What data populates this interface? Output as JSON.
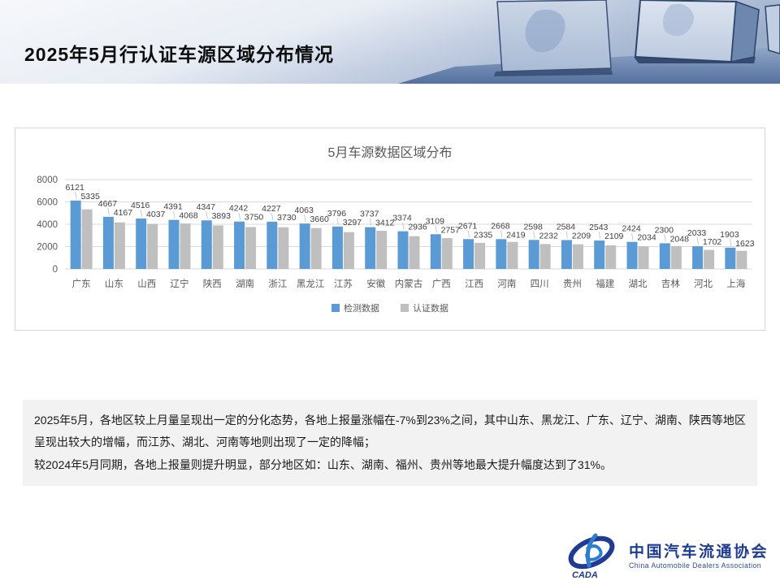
{
  "page": {
    "title": "2025年5月行认证车源区域分布情况"
  },
  "chart_data": {
    "type": "bar",
    "title": "5月车源数据区域分布",
    "categories": [
      "广东",
      "山东",
      "山西",
      "辽宁",
      "陕西",
      "湖南",
      "浙江",
      "黑龙江",
      "江苏",
      "安徽",
      "内蒙古",
      "广西",
      "江西",
      "河南",
      "四川",
      "贵州",
      "福建",
      "湖北",
      "吉林",
      "河北",
      "上海"
    ],
    "series": [
      {
        "name": "检测数据",
        "color": "#5B9BD5",
        "values": [
          6121,
          4667,
          4516,
          4391,
          4347,
          4242,
          4227,
          4063,
          3796,
          3737,
          3374,
          3109,
          2671,
          2668,
          2598,
          2584,
          2543,
          2424,
          2300,
          2033,
          1903
        ]
      },
      {
        "name": "认证数据",
        "color": "#BFBFBF",
        "values": [
          5335,
          4167,
          4037,
          4068,
          3893,
          3750,
          3730,
          3660,
          3297,
          3412,
          2936,
          2757,
          2335,
          2419,
          2232,
          2209,
          2109,
          2034,
          2048,
          1702,
          1623
        ]
      }
    ],
    "xlabel": "",
    "ylabel": "",
    "ylim": [
      0,
      8000
    ],
    "yticks": [
      0,
      2000,
      4000,
      6000,
      8000
    ],
    "grid": true,
    "legend_position": "bottom"
  },
  "summary": {
    "line1": "2025年5月，各地区较上月量呈现出一定的分化态势，各地上报量涨幅在-7%到23%之间，其中山东、黑龙江、广东、辽宁、湖南、陕西等地区呈现出较大的增幅，而江苏、湖北、河南等地则出现了一定的降幅；",
    "line2": "较2024年5月同期，各地上报量则提升明显，部分地区如：山东、湖南、福州、贵州等地最大提升幅度达到了31%。"
  },
  "footer": {
    "logo_mark": "CADA",
    "logo_text_cn": "中国汽车流通协会",
    "logo_text_en": "China Automobile Dealers Association",
    "brand_color": "#1F3C92"
  },
  "colors": {
    "detection_bar": "#5B9BD5",
    "certification_bar": "#BFBFBF",
    "gridline": "#D9D9D9",
    "axis_text": "#595959",
    "value_label": "#404040"
  }
}
